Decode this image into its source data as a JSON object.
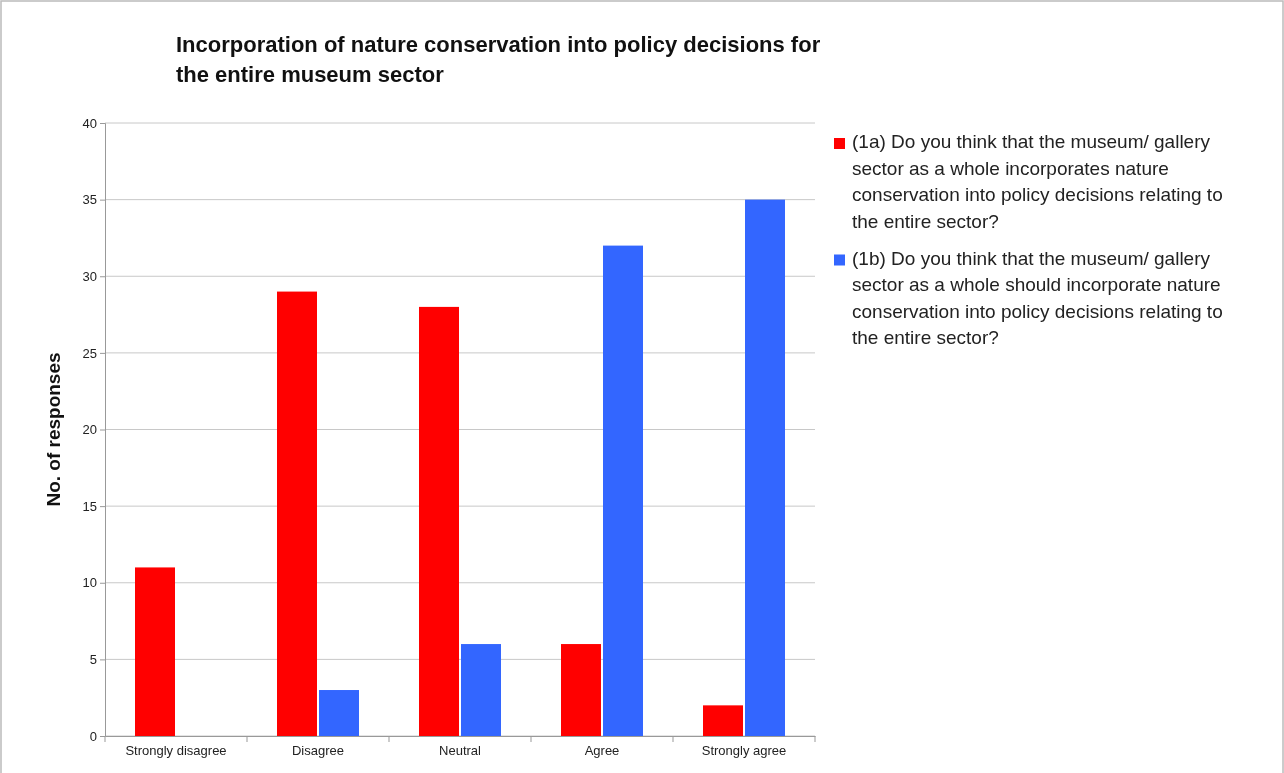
{
  "chart_data": {
    "type": "bar",
    "title": "Incorporation of nature conservation into policy decisions for the entire museum sector",
    "ylabel": "No. of responses",
    "categories": [
      "Strongly disagree",
      "Disagree",
      "Neutral",
      "Agree",
      "Strongly agree"
    ],
    "series": [
      {
        "name": "(1a) Do you think that the museum/ gallery sector as a whole incorporates nature conservation into policy decisions relating to the entire sector?",
        "color": "#ff0000",
        "values": [
          11,
          29,
          28,
          6,
          2
        ]
      },
      {
        "name": "(1b) Do you think that the museum/ gallery sector as a whole should incorporate nature conservation into policy decisions relating to the entire sector?",
        "color": "#3366ff",
        "values": [
          0,
          3,
          6,
          32,
          35
        ]
      }
    ],
    "ylim": [
      0,
      40
    ],
    "yticks": [
      0,
      5,
      10,
      15,
      20,
      25,
      30,
      35,
      40
    ],
    "grid": "y",
    "legend": "right"
  }
}
